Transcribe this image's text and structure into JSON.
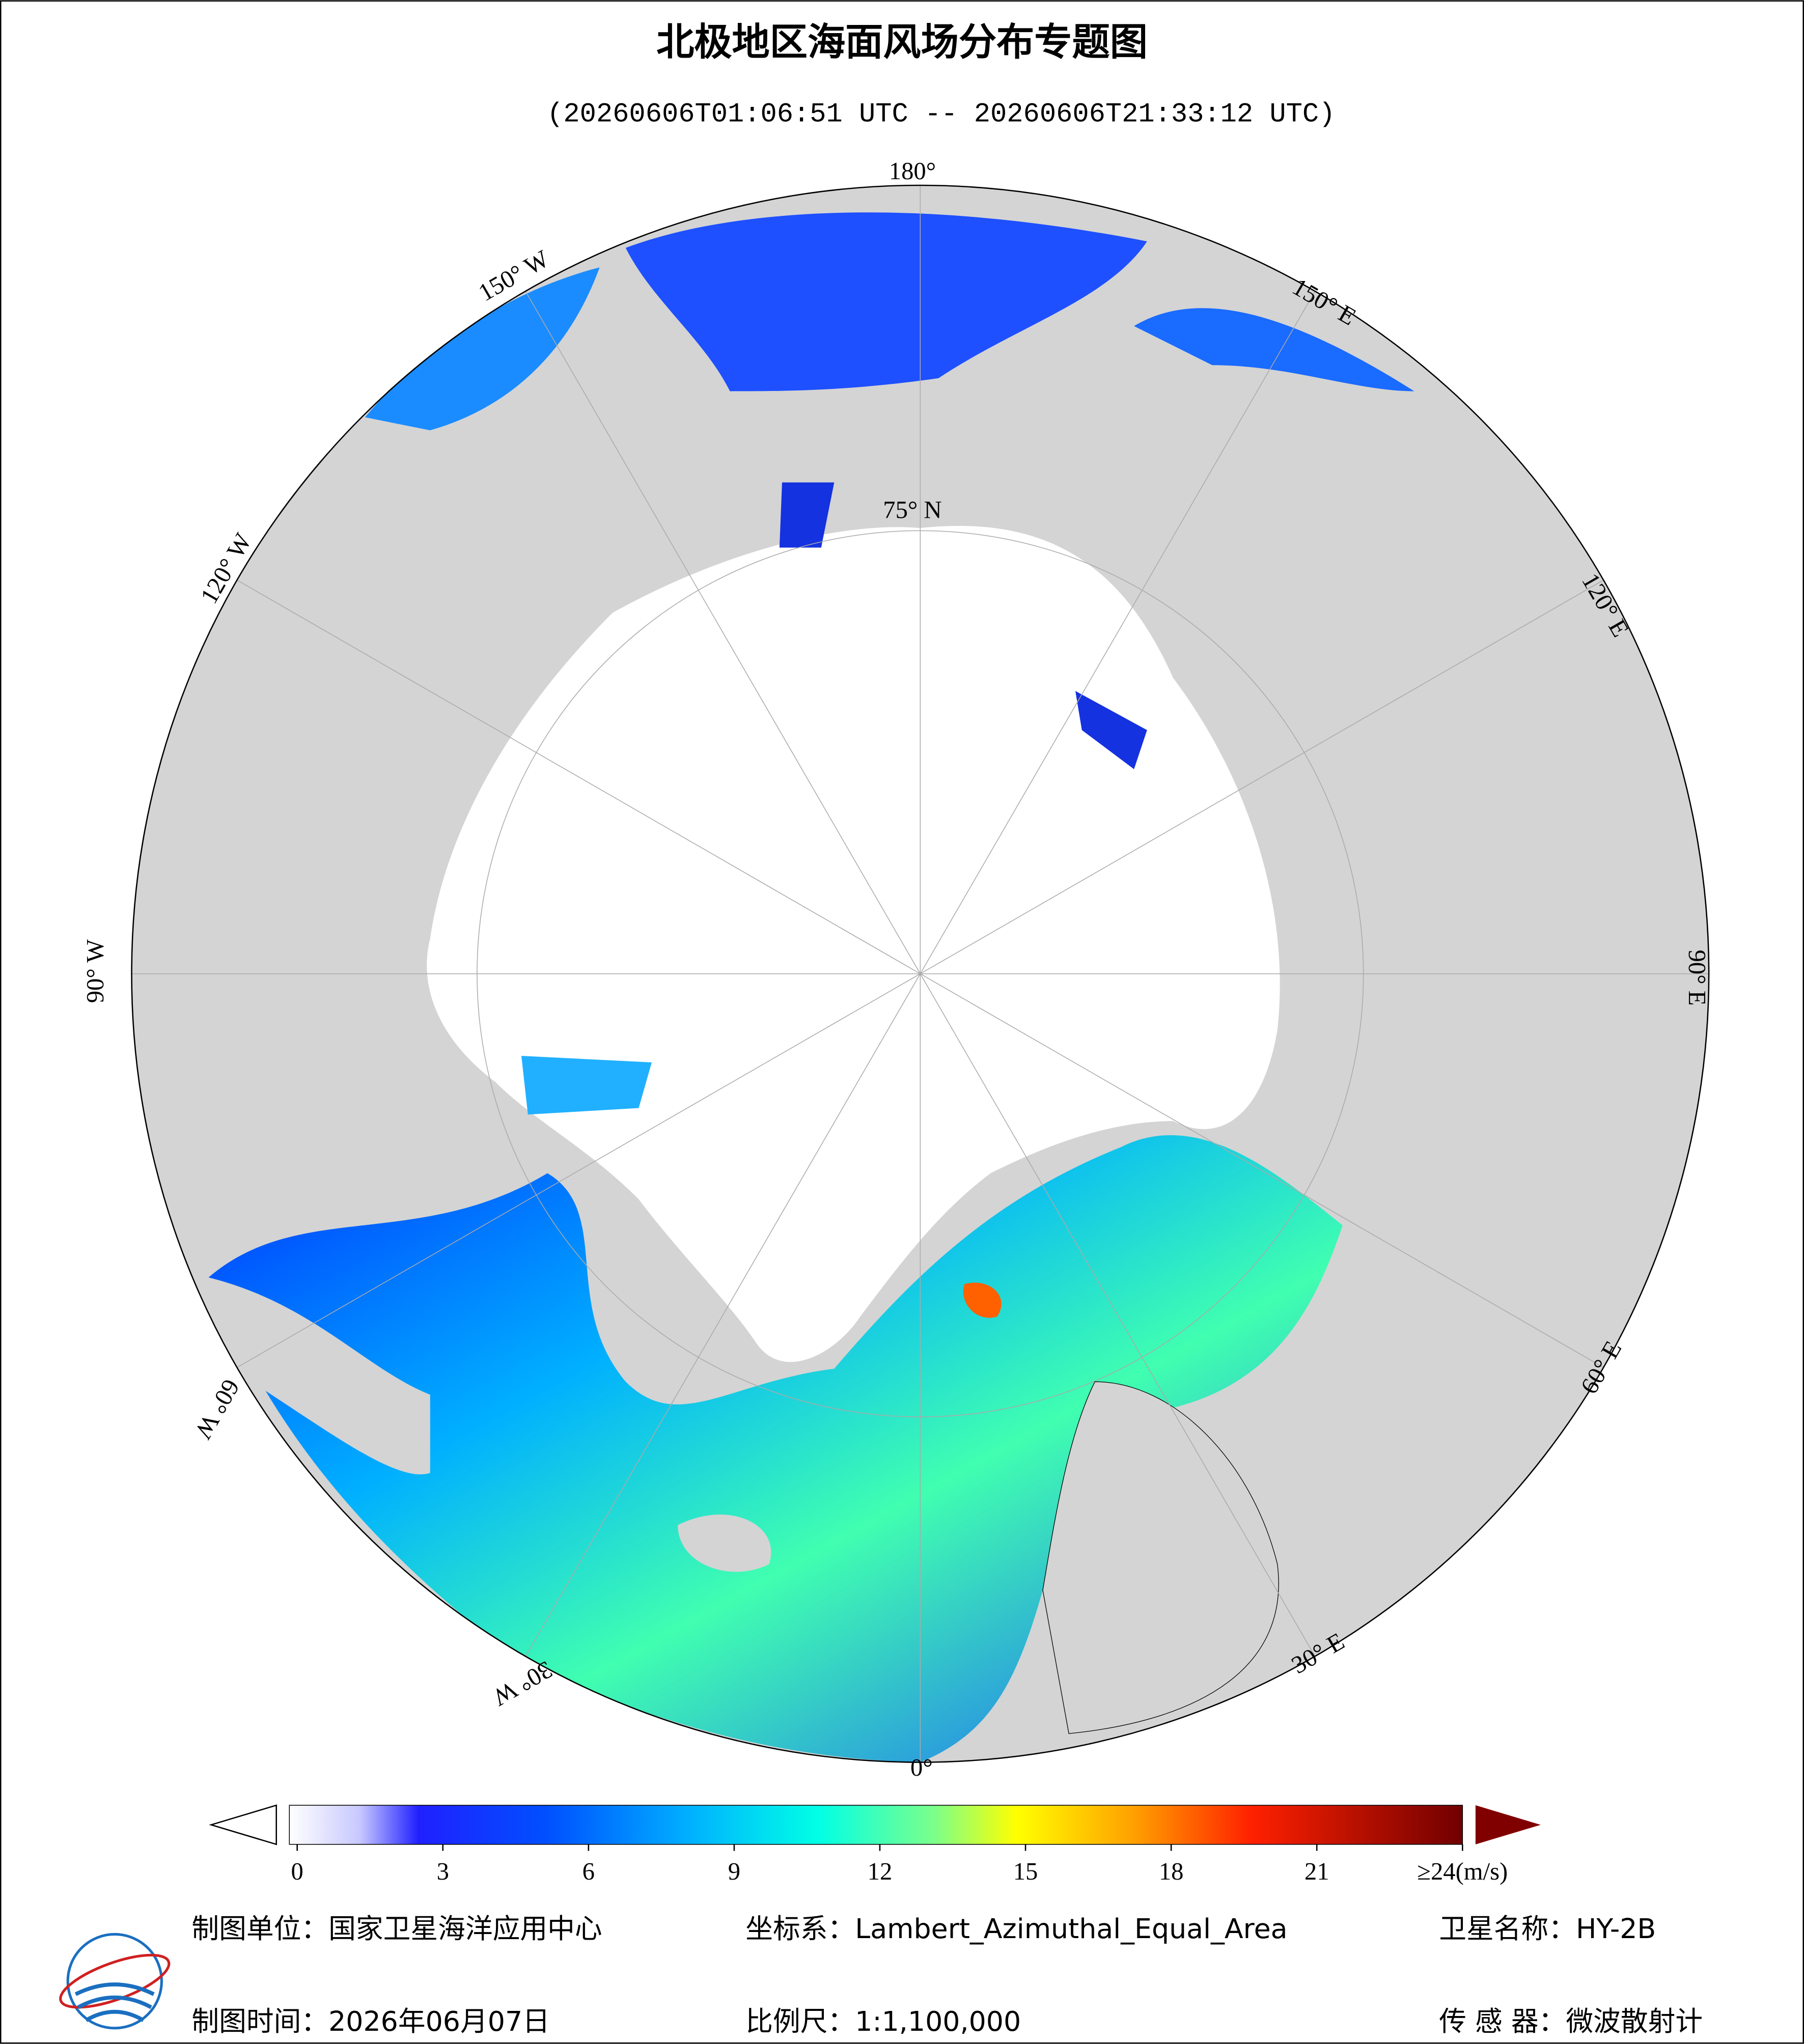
{
  "header": {
    "title": "北极地区海面风场分布专题图",
    "subtitle": "(20260606T01:06:51 UTC -- 20260606T21:33:12 UTC)"
  },
  "map": {
    "graticule_labels": [
      "180°",
      "150° W",
      "120° W",
      "90° W",
      "60° W",
      "30° W",
      "0°",
      "30° E",
      "60° E",
      "90° E",
      "120° E",
      "150° E",
      "75° N"
    ]
  },
  "colorbar": {
    "lim": [
      0,
      24
    ],
    "ticks": [
      0,
      3,
      6,
      9,
      12,
      15,
      18,
      21,
      {
        "value": 24,
        "label": "≥24(m/s)"
      }
    ]
  },
  "footer": {
    "producer": "制图单位：国家卫星海洋应用中心",
    "projection": "坐标系：Lambert_Azimuthal_Equal_Area",
    "satellite": "卫星名称：HY-2B",
    "date": "制图时间：2026年06月07日",
    "scale": "比例尺：1:1,100,000",
    "sensor": "传 感 器：微波散射计"
  }
}
